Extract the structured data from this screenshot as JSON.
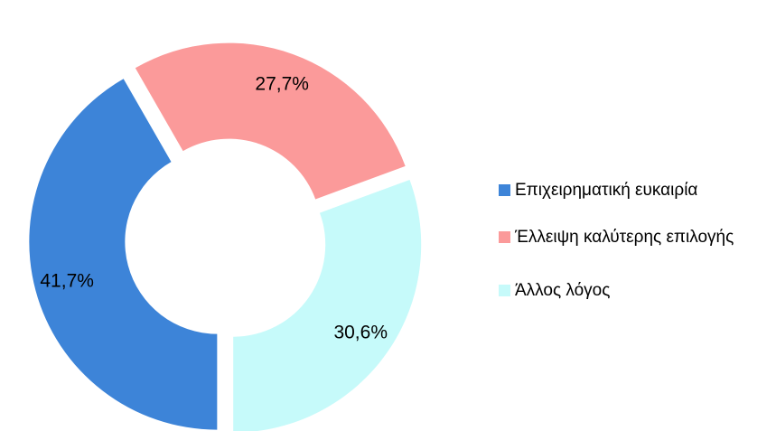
{
  "chart_data": {
    "type": "donut",
    "categories": [
      "Επιχειρηματική ευκαιρία",
      "Έλλειψη καλύτερης επιλογής",
      "Άλλος λόγος"
    ],
    "values": [
      41.7,
      27.7,
      30.6
    ],
    "value_labels": [
      "41,7%",
      "27,7%",
      "30,6%"
    ],
    "colors": [
      "#3d84d8",
      "#fb9a9a",
      "#c6fafa"
    ],
    "legend": "right"
  }
}
